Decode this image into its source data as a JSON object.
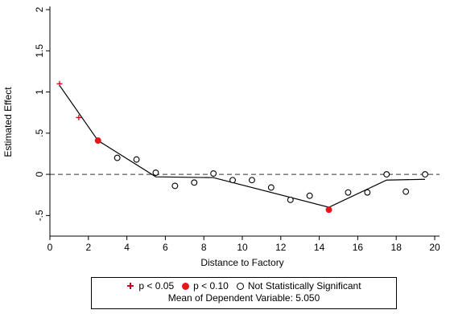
{
  "chart_data": {
    "type": "scatter",
    "xlabel": "Distance to Factory",
    "ylabel": "Estimated Effect",
    "xlim": [
      0,
      20
    ],
    "ylim": [
      -0.75,
      2.0
    ],
    "xticks": [
      0,
      2,
      4,
      6,
      8,
      10,
      12,
      14,
      16,
      18,
      20
    ],
    "xtick_labels": [
      "0",
      "2",
      "4",
      "6",
      "8",
      "10",
      "12",
      "14",
      "16",
      "18",
      "20"
    ],
    "yticks": [
      -0.5,
      0,
      0.5,
      1,
      1.5,
      2
    ],
    "ytick_labels": [
      "-.5",
      "0",
      ".5",
      "1",
      "1.5",
      "2"
    ],
    "reference_line_y": 0,
    "series": [
      {
        "name": "p < 0.05",
        "marker": "plus",
        "color": "#d0021b",
        "x": [
          0.5,
          1.5
        ],
        "y": [
          1.1,
          0.69
        ]
      },
      {
        "name": "p < 0.10",
        "marker": "filled-circle",
        "color": "#e8141b",
        "x": [
          2.5,
          14.5
        ],
        "y": [
          0.41,
          -0.43
        ]
      },
      {
        "name": "Not Statistically Significant",
        "marker": "hollow-circle",
        "color": "#000000",
        "x": [
          3.5,
          4.5,
          5.5,
          6.5,
          7.5,
          8.5,
          9.5,
          10.5,
          11.5,
          12.5,
          13.5,
          15.5,
          16.5,
          17.5,
          18.5,
          19.5
        ],
        "y": [
          0.2,
          0.18,
          0.02,
          -0.14,
          -0.1,
          0.01,
          -0.07,
          -0.07,
          -0.16,
          -0.31,
          -0.26,
          -0.22,
          -0.22,
          0.0,
          -0.21,
          0.0
        ]
      }
    ],
    "fit_line": {
      "x": [
        0.5,
        2.5,
        5.5,
        8.5,
        14.5,
        17.5,
        19.5
      ],
      "y": [
        1.08,
        0.41,
        -0.03,
        -0.04,
        -0.4,
        -0.07,
        -0.06
      ]
    },
    "legend": {
      "placement": "bottom",
      "note": "Mean of Dependent Variable: 5.050"
    }
  }
}
